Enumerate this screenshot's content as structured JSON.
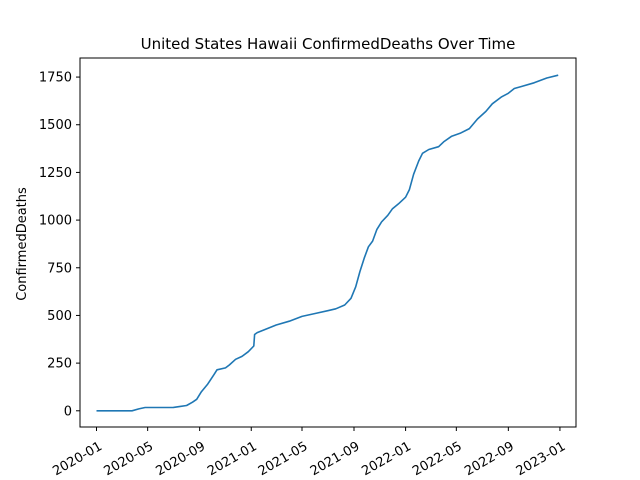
{
  "chart_data": {
    "type": "line",
    "title": "United States Hawaii ConfirmedDeaths Over Time",
    "xlabel": "",
    "ylabel": "ConfirmedDeaths",
    "xlim": [
      "2019-11-23",
      "2023-02-08"
    ],
    "ylim": [
      -85,
      1850
    ],
    "x_ticks": [
      "2020-01",
      "2020-05",
      "2020-09",
      "2021-01",
      "2021-05",
      "2021-09",
      "2022-01",
      "2022-05",
      "2022-09",
      "2023-01"
    ],
    "y_ticks": [
      0,
      250,
      500,
      750,
      1000,
      1250,
      1500,
      1750
    ],
    "grid": false,
    "series": [
      {
        "color": "#1f77b4",
        "points": [
          [
            "2020-01-01",
            0
          ],
          [
            "2020-03-25",
            0
          ],
          [
            "2020-04-10",
            10
          ],
          [
            "2020-04-25",
            17
          ],
          [
            "2020-06-01",
            17
          ],
          [
            "2020-07-01",
            18
          ],
          [
            "2020-07-15",
            22
          ],
          [
            "2020-08-01",
            28
          ],
          [
            "2020-08-15",
            45
          ],
          [
            "2020-08-25",
            60
          ],
          [
            "2020-09-05",
            100
          ],
          [
            "2020-09-20",
            140
          ],
          [
            "2020-10-05",
            190
          ],
          [
            "2020-10-12",
            215
          ],
          [
            "2020-11-01",
            225
          ],
          [
            "2020-11-10",
            240
          ],
          [
            "2020-11-25",
            270
          ],
          [
            "2020-12-10",
            285
          ],
          [
            "2020-12-25",
            310
          ],
          [
            "2021-01-07",
            340
          ],
          [
            "2021-01-09",
            400
          ],
          [
            "2021-01-15",
            410
          ],
          [
            "2021-02-01",
            425
          ],
          [
            "2021-03-01",
            450
          ],
          [
            "2021-04-01",
            470
          ],
          [
            "2021-05-01",
            495
          ],
          [
            "2021-06-01",
            510
          ],
          [
            "2021-07-01",
            525
          ],
          [
            "2021-07-20",
            535
          ],
          [
            "2021-08-10",
            555
          ],
          [
            "2021-08-25",
            590
          ],
          [
            "2021-09-05",
            650
          ],
          [
            "2021-09-15",
            730
          ],
          [
            "2021-09-25",
            800
          ],
          [
            "2021-10-05",
            860
          ],
          [
            "2021-10-15",
            890
          ],
          [
            "2021-10-25",
            950
          ],
          [
            "2021-11-05",
            990
          ],
          [
            "2021-11-20",
            1025
          ],
          [
            "2021-12-01",
            1060
          ],
          [
            "2021-12-15",
            1085
          ],
          [
            "2022-01-01",
            1120
          ],
          [
            "2022-01-10",
            1160
          ],
          [
            "2022-01-20",
            1240
          ],
          [
            "2022-02-01",
            1310
          ],
          [
            "2022-02-10",
            1350
          ],
          [
            "2022-02-25",
            1370
          ],
          [
            "2022-03-20",
            1385
          ],
          [
            "2022-04-01",
            1410
          ],
          [
            "2022-04-20",
            1440
          ],
          [
            "2022-05-10",
            1455
          ],
          [
            "2022-06-01",
            1480
          ],
          [
            "2022-06-20",
            1530
          ],
          [
            "2022-07-10",
            1570
          ],
          [
            "2022-07-25",
            1610
          ],
          [
            "2022-08-15",
            1645
          ],
          [
            "2022-09-01",
            1665
          ],
          [
            "2022-09-15",
            1690
          ],
          [
            "2022-10-01",
            1700
          ],
          [
            "2022-11-01",
            1720
          ],
          [
            "2022-12-01",
            1745
          ],
          [
            "2022-12-28",
            1760
          ]
        ]
      }
    ]
  }
}
